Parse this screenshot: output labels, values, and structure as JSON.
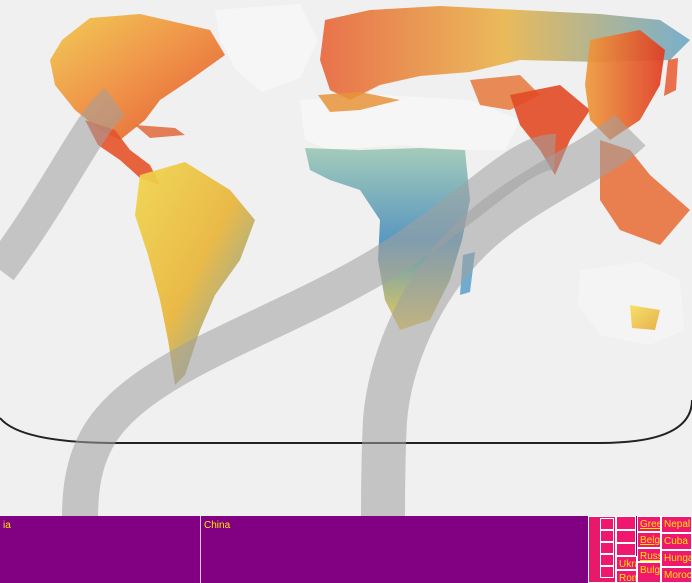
{
  "colors": {
    "background": "#f0f0f0",
    "land_bare": "#f2f2f2",
    "strip_bg": "#820082",
    "cell_label": "#ffe600",
    "mini_bg": "#f0186e",
    "flow": "#c8c8c8",
    "frame": "#222222"
  },
  "map": {
    "regions": [
      "North America",
      "Central America",
      "South America",
      "Europe",
      "North Africa",
      "Sub-Saharan Africa",
      "Middle East",
      "South Asia",
      "East Asia",
      "Southeast Asia",
      "Australia"
    ]
  },
  "strip": {
    "cells": [
      {
        "label": "ia"
      },
      {
        "label": "China"
      }
    ],
    "small_cells": [
      {
        "label": "Greece"
      },
      {
        "label": "Belgium"
      },
      {
        "label": "Russia"
      },
      {
        "label": "Ukraine"
      },
      {
        "label": "Romania"
      },
      {
        "label": "Bulgaria"
      },
      {
        "label": "Nepal"
      },
      {
        "label": "Cuba"
      },
      {
        "label": "Hungary"
      },
      {
        "label": "Morocco"
      }
    ]
  }
}
